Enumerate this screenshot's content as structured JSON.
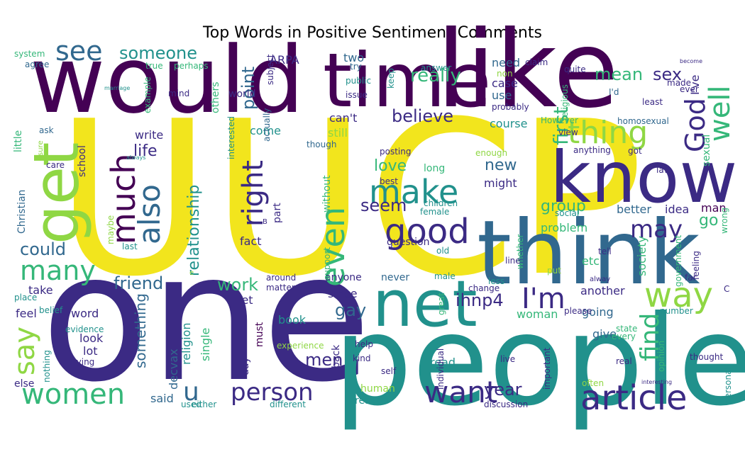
{
  "chart_data": {
    "type": "wordcloud",
    "title": "Top Words in Positive Sentiment Comments",
    "colormap": "viridis",
    "words": [
      {
        "text": "UUCP",
        "weight": 1.0
      },
      {
        "text": "would",
        "weight": 0.8
      },
      {
        "text": "one",
        "weight": 0.78
      },
      {
        "text": "people",
        "weight": 0.72
      },
      {
        "text": "like",
        "weight": 0.62
      },
      {
        "text": "think",
        "weight": 0.58
      },
      {
        "text": "time",
        "weight": 0.5
      },
      {
        "text": "know",
        "weight": 0.48
      },
      {
        "text": "net",
        "weight": 0.44
      },
      {
        "text": "get",
        "weight": 0.42
      },
      {
        "text": "article",
        "weight": 0.3
      },
      {
        "text": "good",
        "weight": 0.28
      },
      {
        "text": "way",
        "weight": 0.27
      },
      {
        "text": "I'm",
        "weight": 0.26
      },
      {
        "text": "much",
        "weight": 0.25
      },
      {
        "text": "make",
        "weight": 0.24
      },
      {
        "text": "even",
        "weight": 0.24
      },
      {
        "text": "want",
        "weight": 0.24
      },
      {
        "text": "right",
        "weight": 0.23
      },
      {
        "text": "women",
        "weight": 0.22
      },
      {
        "text": "thing",
        "weight": 0.22
      },
      {
        "text": "say",
        "weight": 0.22
      },
      {
        "text": "also",
        "weight": 0.22
      },
      {
        "text": "many",
        "weight": 0.21
      },
      {
        "text": "see",
        "weight": 0.21
      },
      {
        "text": "God",
        "weight": 0.21
      },
      {
        "text": "well",
        "weight": 0.21
      },
      {
        "text": "person",
        "weight": 0.2
      },
      {
        "text": "u",
        "weight": 0.2
      },
      {
        "text": "find",
        "weight": 0.19
      },
      {
        "text": "may",
        "weight": 0.18
      },
      {
        "text": "really",
        "weight": 0.17
      },
      {
        "text": "first",
        "weight": 0.17
      },
      {
        "text": "believe",
        "weight": 0.16
      },
      {
        "text": "mean",
        "weight": 0.16
      },
      {
        "text": "sex",
        "weight": 0.16
      },
      {
        "text": "someone",
        "weight": 0.15
      },
      {
        "text": "could",
        "weight": 0.15
      },
      {
        "text": "friend",
        "weight": 0.15
      },
      {
        "text": "point",
        "weight": 0.15
      },
      {
        "text": "seem",
        "weight": 0.15
      },
      {
        "text": "relationship",
        "weight": 0.15
      },
      {
        "text": "work",
        "weight": 0.15
      },
      {
        "text": "ihnp4",
        "weight": 0.15
      },
      {
        "text": "gay",
        "weight": 0.14
      },
      {
        "text": "year",
        "weight": 0.14
      },
      {
        "text": "men",
        "weight": 0.14
      },
      {
        "text": "life",
        "weight": 0.14
      },
      {
        "text": "something",
        "weight": 0.14
      },
      {
        "text": "group",
        "weight": 0.14
      },
      {
        "text": "new",
        "weight": 0.14
      },
      {
        "text": "love",
        "weight": 0.13
      },
      {
        "text": "go",
        "weight": 0.13
      },
      {
        "text": "ARPA",
        "weight": 0.12
      },
      {
        "text": "two",
        "weight": 0.12
      },
      {
        "text": "need",
        "weight": 0.12
      },
      {
        "text": "I've",
        "weight": 0.12
      },
      {
        "text": "use",
        "weight": 0.12
      },
      {
        "text": "case",
        "weight": 0.12
      },
      {
        "text": "can't",
        "weight": 0.12
      },
      {
        "text": "still",
        "weight": 0.12
      },
      {
        "text": "write",
        "weight": 0.12
      },
      {
        "text": "come",
        "weight": 0.12
      },
      {
        "text": "course",
        "weight": 0.12
      },
      {
        "text": "fact",
        "weight": 0.12
      },
      {
        "text": "might",
        "weight": 0.12
      },
      {
        "text": "better",
        "weight": 0.12
      },
      {
        "text": "idea",
        "weight": 0.12
      },
      {
        "text": "man",
        "weight": 0.11
      },
      {
        "text": "problem",
        "weight": 0.11
      },
      {
        "text": "society",
        "weight": 0.11
      },
      {
        "text": "etc",
        "weight": 0.11
      },
      {
        "text": "another",
        "weight": 0.11
      },
      {
        "text": "going",
        "weight": 0.11
      },
      {
        "text": "give",
        "weight": 0.11
      },
      {
        "text": "woman",
        "weight": 0.11
      },
      {
        "text": "book",
        "weight": 0.11
      },
      {
        "text": "feel",
        "weight": 0.11
      },
      {
        "text": "take",
        "weight": 0.11
      },
      {
        "text": "word",
        "weight": 0.11
      },
      {
        "text": "look",
        "weight": 0.11
      },
      {
        "text": "lot",
        "weight": 0.11
      },
      {
        "text": "religion",
        "weight": 0.11
      },
      {
        "text": "single",
        "weight": 0.11
      },
      {
        "text": "decvax",
        "weight": 0.11
      },
      {
        "text": "said",
        "weight": 0.11
      },
      {
        "text": "let",
        "weight": 0.11
      },
      {
        "text": "since",
        "weight": 0.11
      },
      {
        "text": "anyone",
        "weight": 0.1
      },
      {
        "text": "never",
        "weight": 0.1
      },
      {
        "text": "question",
        "weight": 0.1
      },
      {
        "text": "back",
        "weight": 0.1
      },
      {
        "text": "human",
        "weight": 0.1
      },
      {
        "text": "reason",
        "weight": 0.1
      },
      {
        "text": "read",
        "weight": 0.1
      },
      {
        "text": "day",
        "weight": 0.1
      },
      {
        "text": "must",
        "weight": 0.1
      },
      {
        "text": "school",
        "weight": 0.1
      },
      {
        "text": "others",
        "weight": 0.1
      },
      {
        "text": "world",
        "weight": 0.1
      },
      {
        "text": "sexual",
        "weight": 0.1
      },
      {
        "text": "religious",
        "weight": 0.09
      },
      {
        "text": "long",
        "weight": 0.09
      },
      {
        "text": "without",
        "weight": 0.09
      },
      {
        "text": "part",
        "weight": 0.09
      },
      {
        "text": "little",
        "weight": 0.09
      },
      {
        "text": "Christian",
        "weight": 0.09
      },
      {
        "text": "else",
        "weight": 0.09
      },
      {
        "text": "evidence",
        "weight": 0.08
      },
      {
        "text": "trying",
        "weight": 0.08
      },
      {
        "text": "either",
        "weight": 0.08
      },
      {
        "text": "discussion",
        "weight": 0.08
      },
      {
        "text": "different",
        "weight": 0.08
      },
      {
        "text": "system",
        "weight": 0.08
      },
      {
        "text": "agree",
        "weight": 0.08
      },
      {
        "text": "true",
        "weight": 0.08
      },
      {
        "text": "perhaps",
        "weight": 0.08
      },
      {
        "text": "mind",
        "weight": 0.08
      },
      {
        "text": "try",
        "weight": 0.08
      },
      {
        "text": "answer",
        "weight": 0.08
      },
      {
        "text": "subject",
        "weight": 0.08
      },
      {
        "text": "public",
        "weight": 0.08
      },
      {
        "text": "issue",
        "weight": 0.08
      },
      {
        "text": "keep",
        "weight": 0.08
      },
      {
        "text": "claim",
        "weight": 0.08
      },
      {
        "text": "non",
        "weight": 0.08
      },
      {
        "text": "probably",
        "weight": 0.08
      },
      {
        "text": "quite",
        "weight": 0.08
      },
      {
        "text": "made",
        "weight": 0.08
      },
      {
        "text": "ever",
        "weight": 0.08
      },
      {
        "text": "I'd",
        "weight": 0.08
      },
      {
        "text": "least",
        "weight": 0.08
      },
      {
        "text": "homosexual",
        "weight": 0.08
      },
      {
        "text": "view",
        "weight": 0.08
      },
      {
        "text": "However",
        "weight": 0.08
      },
      {
        "text": "anything",
        "weight": 0.08
      },
      {
        "text": "got",
        "weight": 0.08
      },
      {
        "text": "law",
        "weight": 0.08
      },
      {
        "text": "example",
        "weight": 0.08
      },
      {
        "text": "ask",
        "weight": 0.08
      },
      {
        "text": "sure",
        "weight": 0.08
      },
      {
        "text": "care",
        "weight": 0.08
      },
      {
        "text": "interested",
        "weight": 0.08
      },
      {
        "text": "actually",
        "weight": 0.08
      },
      {
        "text": "posting",
        "weight": 0.08
      },
      {
        "text": "though",
        "weight": 0.08
      },
      {
        "text": "enough",
        "weight": 0.08
      },
      {
        "text": "best",
        "weight": 0.08
      },
      {
        "text": "children",
        "weight": 0.08
      },
      {
        "text": "female",
        "weight": 0.08
      },
      {
        "text": "social",
        "weight": 0.08
      },
      {
        "text": "maybe",
        "weight": 0.08
      },
      {
        "text": "last",
        "weight": 0.08
      },
      {
        "text": "support",
        "weight": 0.08
      },
      {
        "text": "old",
        "weight": 0.08
      },
      {
        "text": "whether",
        "weight": 0.08
      },
      {
        "text": "tell",
        "weight": 0.08
      },
      {
        "text": "wrong",
        "weight": 0.08
      },
      {
        "text": "line",
        "weight": 0.08
      },
      {
        "text": "put",
        "weight": 0.08
      },
      {
        "text": "feeling",
        "weight": 0.08
      },
      {
        "text": "government",
        "weight": 0.08
      },
      {
        "text": "far",
        "weight": 0.08
      },
      {
        "text": "less",
        "weight": 0.08
      },
      {
        "text": "male",
        "weight": 0.08
      },
      {
        "text": "around",
        "weight": 0.08
      },
      {
        "text": "matter",
        "weight": 0.08
      },
      {
        "text": "place",
        "weight": 0.08
      },
      {
        "text": "belief",
        "weight": 0.08
      },
      {
        "text": "change",
        "weight": 0.08
      },
      {
        "text": "alway",
        "weight": 0.08
      },
      {
        "text": "please",
        "weight": 0.08
      },
      {
        "text": "number",
        "weight": 0.08
      },
      {
        "text": "great",
        "weight": 0.08
      },
      {
        "text": "state",
        "weight": 0.08
      },
      {
        "text": "every",
        "weight": 0.08
      },
      {
        "text": "real",
        "weight": 0.08
      },
      {
        "text": "opinion",
        "weight": 0.08
      },
      {
        "text": "thought",
        "weight": 0.08
      },
      {
        "text": "personal",
        "weight": 0.08
      },
      {
        "text": "nothing",
        "weight": 0.08
      },
      {
        "text": "experience",
        "weight": 0.08
      },
      {
        "text": "help",
        "weight": 0.08
      },
      {
        "text": "kind",
        "weight": 0.08
      },
      {
        "text": "self",
        "weight": 0.08
      },
      {
        "text": "individual",
        "weight": 0.08
      },
      {
        "text": "live",
        "weight": 0.08
      },
      {
        "text": "important",
        "weight": 0.08
      },
      {
        "text": "often",
        "weight": 0.08
      },
      {
        "text": "interesting",
        "weight": 0.08
      },
      {
        "text": "used",
        "weight": 0.08
      },
      {
        "text": "marriage",
        "weight": 0.08
      },
      {
        "text": "become",
        "weight": 0.08
      },
      {
        "text": "always",
        "weight": 0.08
      },
      {
        "text": "B",
        "weight": 0.08
      },
      {
        "text": "C",
        "weight": 0.08
      },
      {
        "text": "c",
        "weight": 0.08
      },
      {
        "text": "e",
        "weight": 0.08
      }
    ]
  }
}
